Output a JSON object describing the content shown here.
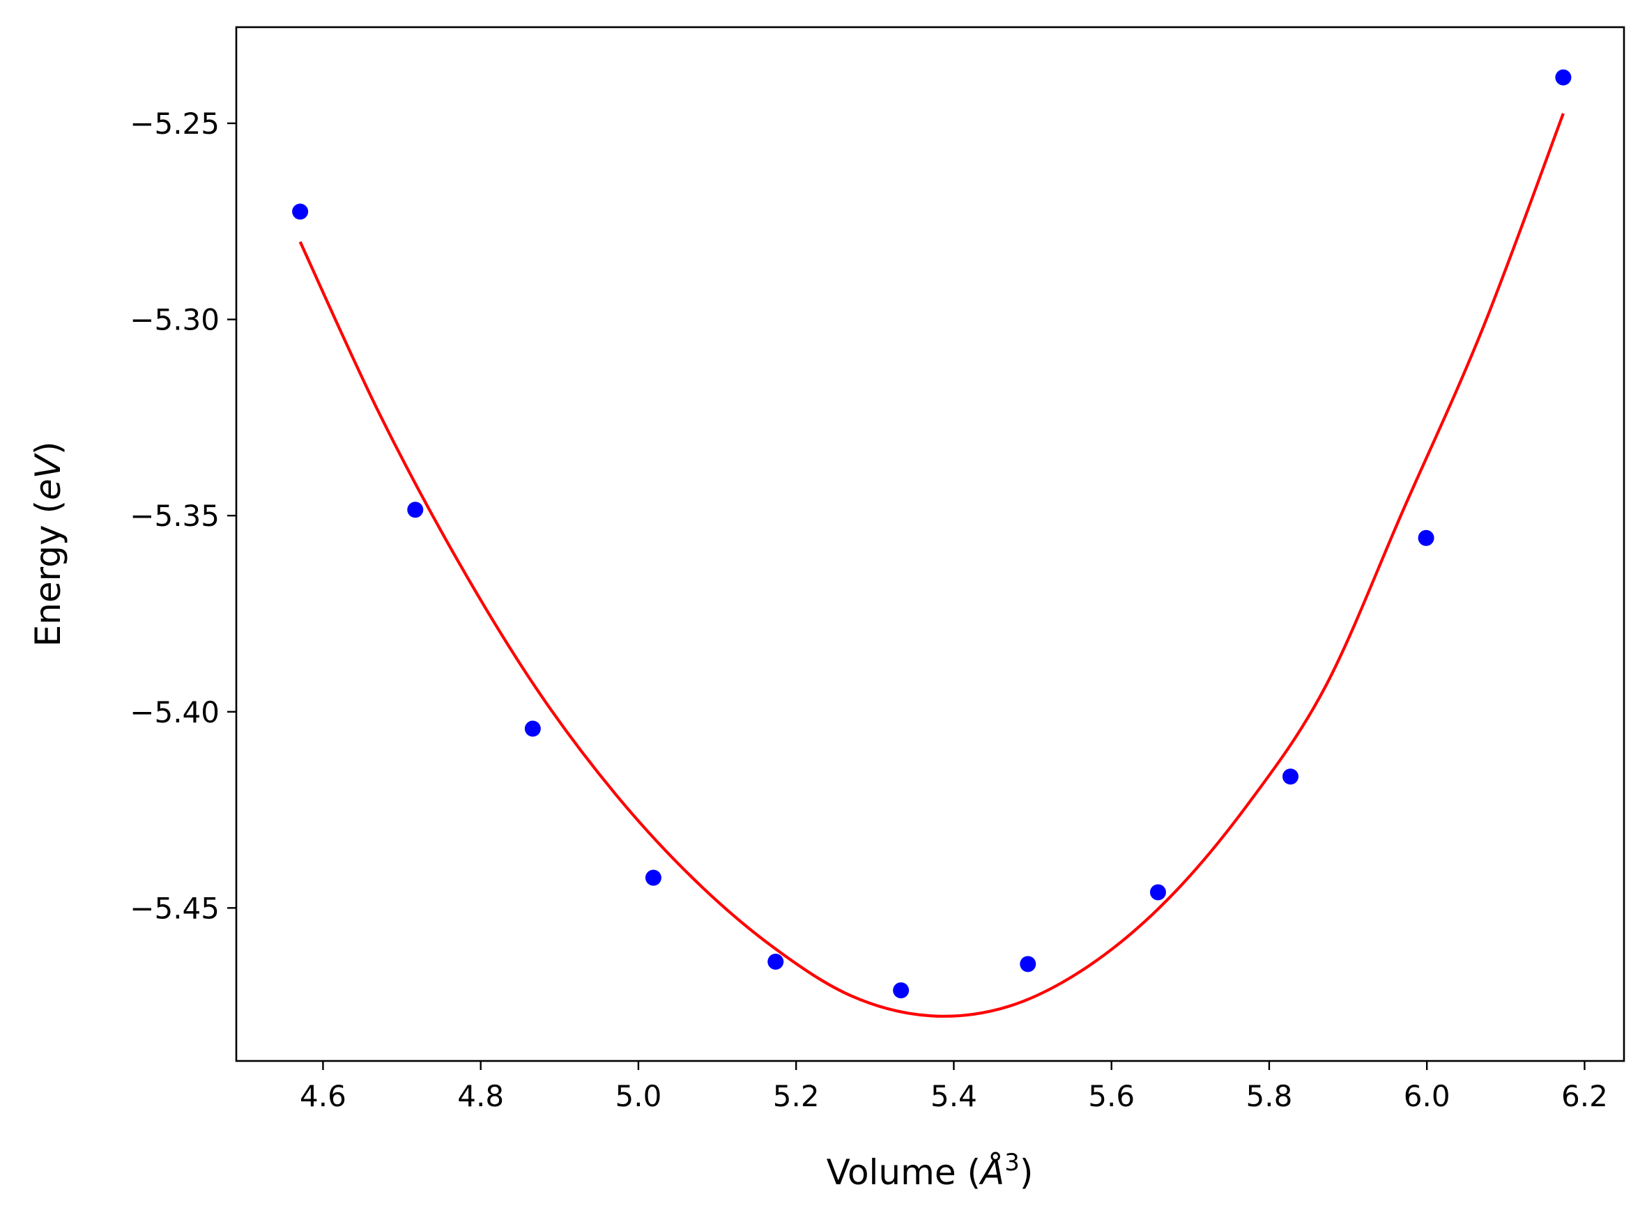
{
  "chart_data": {
    "type": "scatter",
    "title": "",
    "xlabel": {
      "prefix": "Volume (",
      "unit": "Å",
      "exponent": "3",
      "suffix": ")"
    },
    "ylabel": {
      "prefix": "Energy (",
      "unit": "eV",
      "suffix": ")"
    },
    "xlim": [
      4.49,
      6.25
    ],
    "ylim": [
      -5.489,
      -5.2255
    ],
    "grid": false,
    "x_ticks": [
      {
        "value": 4.6,
        "label": "4.6"
      },
      {
        "value": 4.8,
        "label": "4.8"
      },
      {
        "value": 5.0,
        "label": "5.0"
      },
      {
        "value": 5.2,
        "label": "5.2"
      },
      {
        "value": 5.4,
        "label": "5.4"
      },
      {
        "value": 5.6,
        "label": "5.6"
      },
      {
        "value": 5.8,
        "label": "5.8"
      },
      {
        "value": 6.0,
        "label": "6.0"
      },
      {
        "value": 6.2,
        "label": "6.2"
      }
    ],
    "y_ticks": [
      {
        "value": -5.25,
        "label": "−5.25"
      },
      {
        "value": -5.3,
        "label": "−5.30"
      },
      {
        "value": -5.35,
        "label": "−5.35"
      },
      {
        "value": -5.4,
        "label": "−5.40"
      },
      {
        "value": -5.45,
        "label": "−5.45"
      }
    ],
    "series": [
      {
        "kind": "scatter",
        "color": "#0000ff",
        "x": [
          4.571,
          4.717,
          4.866,
          5.019,
          5.174,
          5.333,
          5.494,
          5.659,
          5.827,
          5.999,
          6.173
        ],
        "y": [
          -5.2725,
          -5.3485,
          -5.4043,
          -5.4423,
          -5.4637,
          -5.471,
          -5.4643,
          -5.446,
          -5.4165,
          -5.3557,
          -5.2383
        ]
      },
      {
        "kind": "line",
        "color": "#ff0000",
        "x": [
          4.571,
          4.671,
          4.771,
          4.871,
          4.971,
          5.071,
          5.171,
          5.271,
          5.371,
          5.471,
          5.571,
          5.671,
          5.771,
          5.871,
          5.971,
          6.071,
          6.173
        ],
        "y": [
          -5.2802,
          -5.3238,
          -5.3615,
          -5.3942,
          -5.421,
          -5.4428,
          -5.46,
          -5.4725,
          -5.4775,
          -5.475,
          -5.4648,
          -5.4479,
          -5.4241,
          -5.3937,
          -5.3481,
          -5.3022,
          -5.2475
        ]
      }
    ]
  }
}
